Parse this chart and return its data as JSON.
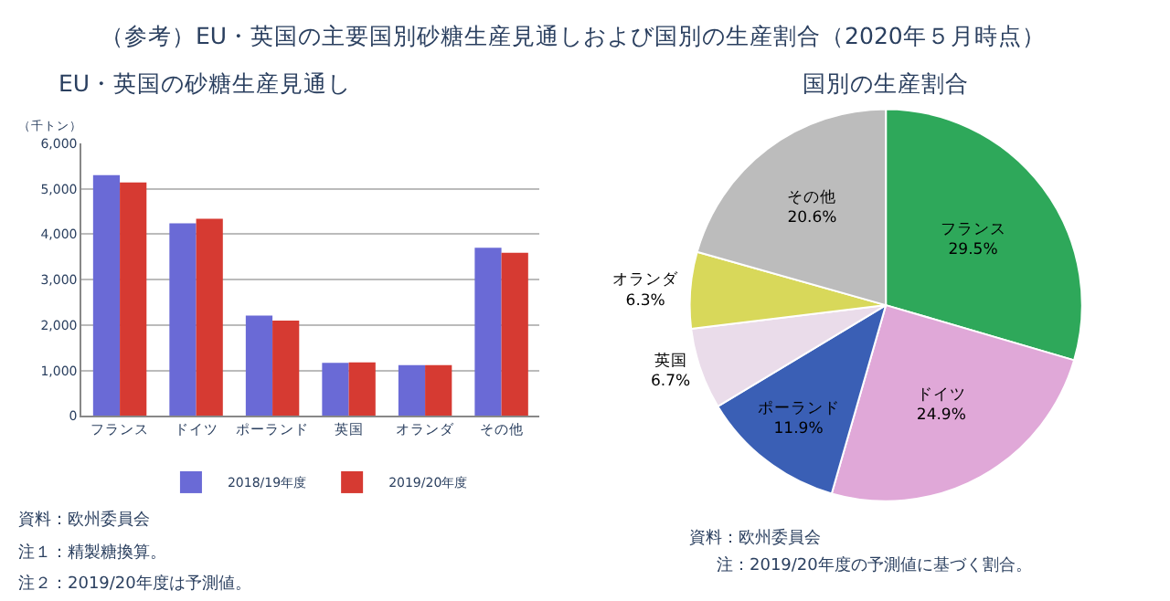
{
  "chart_data": [
    {
      "type": "bar",
      "title": "（参考）EU・英国の主要国別砂糖生産見通しおよび国別の生産割合（2020年５月時点）",
      "subtitle": "EU・英国の砂糖生産見通し",
      "ylabel": "（千トン）",
      "categories": [
        "フランス",
        "ドイツ",
        "ポーランド",
        "英国",
        "オランダ",
        "その他"
      ],
      "series": [
        {
          "name": "2018/19年度",
          "color": "#6a6ad6",
          "values": [
            5300,
            4240,
            2210,
            1170,
            1120,
            3700
          ]
        },
        {
          "name": "2019/20年度",
          "color": "#d63a32",
          "values": [
            5140,
            4340,
            2100,
            1180,
            1120,
            3590
          ]
        }
      ],
      "ylim": [
        0,
        6000
      ],
      "yticks": [
        {
          "value": 0,
          "label": "0"
        },
        {
          "value": 1000,
          "label": "1,000"
        },
        {
          "value": 2000,
          "label": "2,000"
        },
        {
          "value": 3000,
          "label": "3,000"
        },
        {
          "value": 4000,
          "label": "4,000"
        },
        {
          "value": 5000,
          "label": "5,000"
        },
        {
          "value": 6000,
          "label": "6,000"
        }
      ],
      "grid": "y",
      "legend": "bottom",
      "annotations": [
        "資料：欧州委員会",
        "注１：精製糖換算。",
        "注２：2019/20年度は予測値。"
      ]
    },
    {
      "type": "pie",
      "title": "国別の生産割合",
      "categories": [
        "フランス",
        "ドイツ",
        "ポーランド",
        "英国",
        "オランダ",
        "その他"
      ],
      "values": [
        29.5,
        24.9,
        11.9,
        6.7,
        6.3,
        20.6
      ],
      "value_labels": [
        "29.5%",
        "24.9%",
        "11.9%",
        "6.7%",
        "6.3%",
        "20.6%"
      ],
      "colors": [
        "#2ea85a",
        "#e0a8d8",
        "#3a5fb5",
        "#eadcea",
        "#d8d85a",
        "#bcbcbc"
      ],
      "legend": false,
      "annotations": [
        "資料：欧州委員会",
        "注：2019/20年度の予測値に基づく割合。"
      ]
    }
  ]
}
